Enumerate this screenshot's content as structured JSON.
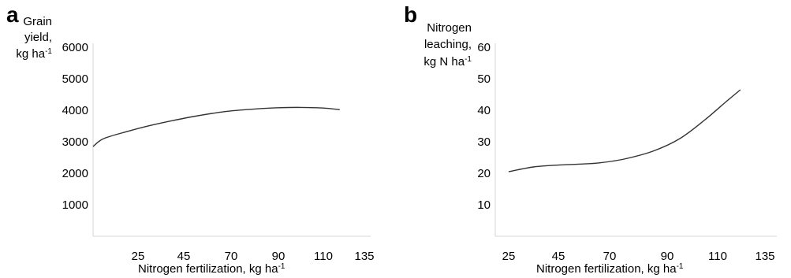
{
  "chart_data": [
    {
      "type": "line",
      "panel_label": "a",
      "title": "",
      "ylabel_lines": [
        "Grain",
        "yield,",
        "kg ha"
      ],
      "ylabel_sup": "-1",
      "xlabel": "Nitrogen fertilization, kg ha",
      "xlabel_sup": "-1",
      "xlim": [
        0,
        135
      ],
      "ylim": [
        0,
        6000
      ],
      "x_ticks": [
        25,
        45,
        70,
        90,
        110,
        135
      ],
      "y_ticks": [
        1000,
        2000,
        3000,
        4000,
        5000,
        6000
      ],
      "series": [
        {
          "x": [
            0,
            10,
            20,
            30,
            40,
            50,
            60,
            70,
            80,
            90,
            100,
            110,
            120
          ],
          "values": [
            2850,
            3100,
            3320,
            3510,
            3670,
            3800,
            3900,
            3980,
            4040,
            4080,
            4090,
            4070,
            4020
          ]
        }
      ]
    },
    {
      "type": "line",
      "panel_label": "b",
      "title": "",
      "ylabel_lines": [
        "Nitrogen",
        "leaching,",
        "kg N ha"
      ],
      "ylabel_sup": "-1",
      "xlabel": "Nitrogen fertilization, kg ha",
      "xlabel_sup": "-1",
      "xlim": [
        25,
        135
      ],
      "ylim": [
        0,
        60
      ],
      "x_ticks": [
        25,
        45,
        70,
        90,
        110,
        135
      ],
      "y_ticks": [
        10,
        20,
        30,
        40,
        50,
        60
      ],
      "series": [
        {
          "x": [
            25,
            35,
            45,
            55,
            65,
            75,
            85,
            95,
            105,
            115,
            122
          ],
          "values": [
            20.5,
            22.0,
            22.6,
            22.9,
            23.3,
            24.5,
            27.0,
            31.0,
            37.0,
            43.0,
            46.5
          ]
        }
      ]
    }
  ]
}
